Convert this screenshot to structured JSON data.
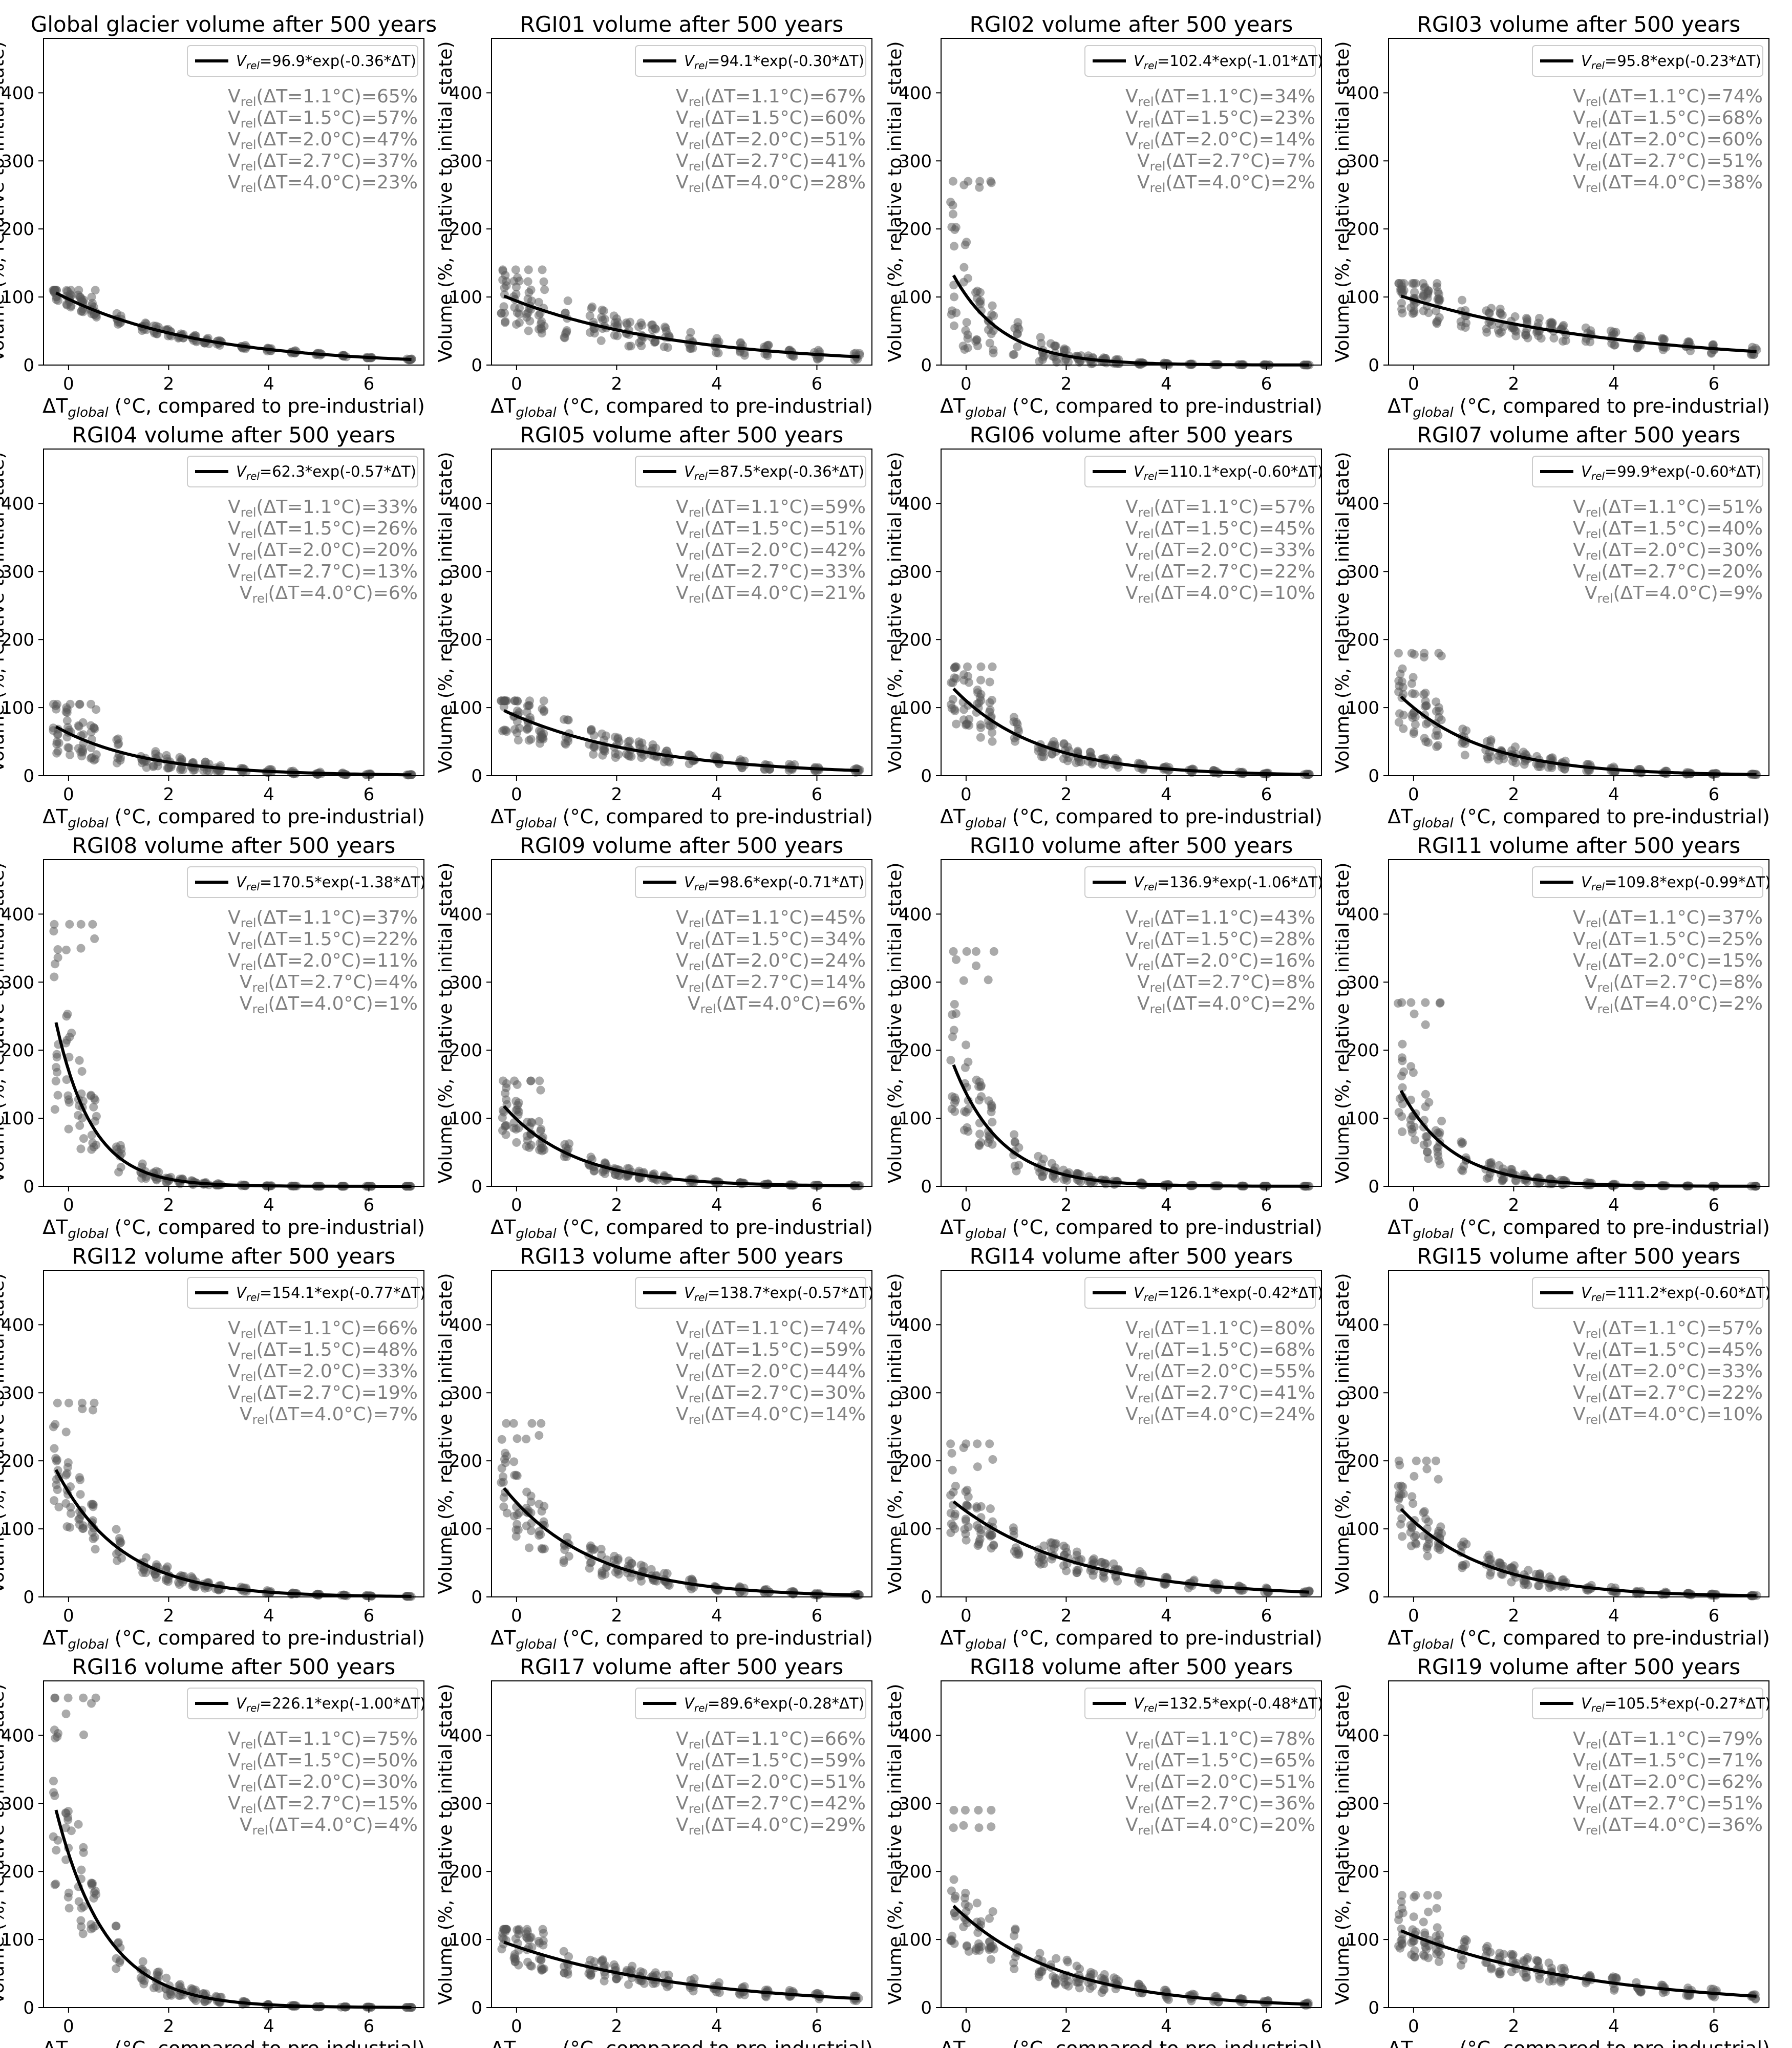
{
  "figure": {
    "xlabel_main": "ΔT",
    "xlabel_sub": "global",
    "xlabel_rest": " (°C, compared to pre-industrial)",
    "ylabel": "Volume (%, relative to initial state)",
    "fit_line_color": "#000000",
    "scatter_color": "#555555",
    "annotation_color": "#808080"
  },
  "chart_data": [
    {
      "type": "scatter",
      "title": "Global glacier volume after 500 years",
      "region": "Global",
      "amplitude": 96.9,
      "rate": 0.36,
      "legend": "=96.9*exp(-0.36*ΔT)",
      "stats": [
        "65%",
        "57%",
        "47%",
        "37%",
        "23%"
      ],
      "max_scatter": 110,
      "spread": 0.12,
      "xlim": [
        -0.5,
        7.1
      ],
      "ylim": [
        0,
        480
      ],
      "xticks": [
        0,
        2,
        4,
        6
      ],
      "yticks": [
        0,
        100,
        200,
        300,
        400
      ]
    },
    {
      "type": "scatter",
      "title": "RGI01 volume after 500 years",
      "region": "RGI01",
      "amplitude": 94.1,
      "rate": 0.3,
      "legend": "=94.1*exp(-0.30*ΔT)",
      "stats": [
        "67%",
        "60%",
        "51%",
        "41%",
        "28%"
      ],
      "max_scatter": 140,
      "spread": 0.45,
      "xlim": [
        -0.5,
        7.1
      ],
      "ylim": [
        0,
        480
      ],
      "xticks": [
        0,
        2,
        4,
        6
      ],
      "yticks": [
        0,
        100,
        200,
        300,
        400
      ]
    },
    {
      "type": "scatter",
      "title": "RGI02 volume after 500 years",
      "region": "RGI02",
      "amplitude": 102.4,
      "rate": 1.01,
      "legend": "=102.4*exp(-1.01*ΔT)",
      "stats": [
        "34%",
        "23%",
        "14%",
        "7%",
        "2%"
      ],
      "max_scatter": 270,
      "spread": 0.8,
      "xlim": [
        -0.5,
        7.1
      ],
      "ylim": [
        0,
        480
      ],
      "xticks": [
        0,
        2,
        4,
        6
      ],
      "yticks": [
        0,
        100,
        200,
        300,
        400
      ]
    },
    {
      "type": "scatter",
      "title": "RGI03 volume after 500 years",
      "region": "RGI03",
      "amplitude": 95.8,
      "rate": 0.23,
      "legend": "=95.8*exp(-0.23*ΔT)",
      "stats": [
        "74%",
        "68%",
        "60%",
        "51%",
        "38%"
      ],
      "max_scatter": 120,
      "spread": 0.3,
      "xlim": [
        -0.5,
        7.1
      ],
      "ylim": [
        0,
        480
      ],
      "xticks": [
        0,
        2,
        4,
        6
      ],
      "yticks": [
        0,
        100,
        200,
        300,
        400
      ]
    },
    {
      "type": "scatter",
      "title": "RGI04 volume after 500 years",
      "region": "RGI04",
      "amplitude": 62.3,
      "rate": 0.57,
      "legend": "=62.3*exp(-0.57*ΔT)",
      "stats": [
        "33%",
        "26%",
        "20%",
        "13%",
        "6%"
      ],
      "max_scatter": 105,
      "spread": 0.55,
      "xlim": [
        -0.5,
        7.1
      ],
      "ylim": [
        0,
        480
      ],
      "xticks": [
        0,
        2,
        4,
        6
      ],
      "yticks": [
        0,
        100,
        200,
        300,
        400
      ]
    },
    {
      "type": "scatter",
      "title": "RGI05 volume after 500 years",
      "region": "RGI05",
      "amplitude": 87.5,
      "rate": 0.36,
      "legend": "=87.5*exp(-0.36*ΔT)",
      "stats": [
        "59%",
        "51%",
        "42%",
        "33%",
        "21%"
      ],
      "max_scatter": 110,
      "spread": 0.4,
      "xlim": [
        -0.5,
        7.1
      ],
      "ylim": [
        0,
        480
      ],
      "xticks": [
        0,
        2,
        4,
        6
      ],
      "yticks": [
        0,
        100,
        200,
        300,
        400
      ]
    },
    {
      "type": "scatter",
      "title": "RGI06 volume after 500 years",
      "region": "RGI06",
      "amplitude": 110.1,
      "rate": 0.6,
      "legend": "=110.1*exp(-0.60*ΔT)",
      "stats": [
        "57%",
        "45%",
        "33%",
        "22%",
        "10%"
      ],
      "max_scatter": 160,
      "spread": 0.4,
      "xlim": [
        -0.5,
        7.1
      ],
      "ylim": [
        0,
        480
      ],
      "xticks": [
        0,
        2,
        4,
        6
      ],
      "yticks": [
        0,
        100,
        200,
        300,
        400
      ]
    },
    {
      "type": "scatter",
      "title": "RGI07 volume after 500 years",
      "region": "RGI07",
      "amplitude": 99.9,
      "rate": 0.6,
      "legend": "=99.9*exp(-0.60*ΔT)",
      "stats": [
        "51%",
        "40%",
        "30%",
        "20%",
        "9%"
      ],
      "max_scatter": 180,
      "spread": 0.45,
      "xlim": [
        -0.5,
        7.1
      ],
      "ylim": [
        0,
        480
      ],
      "xticks": [
        0,
        2,
        4,
        6
      ],
      "yticks": [
        0,
        100,
        200,
        300,
        400
      ]
    },
    {
      "type": "scatter",
      "title": "RGI08 volume after 500 years",
      "region": "RGI08",
      "amplitude": 170.5,
      "rate": 1.38,
      "legend": "=170.5*exp(-1.38*ΔT)",
      "stats": [
        "37%",
        "22%",
        "11%",
        "4%",
        "1%"
      ],
      "max_scatter": 385,
      "spread": 0.55,
      "xlim": [
        -0.5,
        7.1
      ],
      "ylim": [
        0,
        480
      ],
      "xticks": [
        0,
        2,
        4,
        6
      ],
      "yticks": [
        0,
        100,
        200,
        300,
        400
      ]
    },
    {
      "type": "scatter",
      "title": "RGI09 volume after 500 years",
      "region": "RGI09",
      "amplitude": 98.6,
      "rate": 0.71,
      "legend": "=98.6*exp(-0.71*ΔT)",
      "stats": [
        "45%",
        "34%",
        "24%",
        "14%",
        "6%"
      ],
      "max_scatter": 155,
      "spread": 0.35,
      "xlim": [
        -0.5,
        7.1
      ],
      "ylim": [
        0,
        480
      ],
      "xticks": [
        0,
        2,
        4,
        6
      ],
      "yticks": [
        0,
        100,
        200,
        300,
        400
      ]
    },
    {
      "type": "scatter",
      "title": "RGI10 volume after 500 years",
      "region": "RGI10",
      "amplitude": 136.9,
      "rate": 1.06,
      "legend": "=136.9*exp(-1.06*ΔT)",
      "stats": [
        "43%",
        "28%",
        "16%",
        "8%",
        "2%"
      ],
      "max_scatter": 345,
      "spread": 0.55,
      "xlim": [
        -0.5,
        7.1
      ],
      "ylim": [
        0,
        480
      ],
      "xticks": [
        0,
        2,
        4,
        6
      ],
      "yticks": [
        0,
        100,
        200,
        300,
        400
      ]
    },
    {
      "type": "scatter",
      "title": "RGI11 volume after 500 years",
      "region": "RGI11",
      "amplitude": 109.8,
      "rate": 0.99,
      "legend": "=109.8*exp(-0.99*ΔT)",
      "stats": [
        "37%",
        "25%",
        "15%",
        "8%",
        "2%"
      ],
      "max_scatter": 270,
      "spread": 0.6,
      "xlim": [
        -0.5,
        7.1
      ],
      "ylim": [
        0,
        480
      ],
      "xticks": [
        0,
        2,
        4,
        6
      ],
      "yticks": [
        0,
        100,
        200,
        300,
        400
      ]
    },
    {
      "type": "scatter",
      "title": "RGI12 volume after 500 years",
      "region": "RGI12",
      "amplitude": 154.1,
      "rate": 0.77,
      "legend": "=154.1*exp(-0.77*ΔT)",
      "stats": [
        "66%",
        "48%",
        "33%",
        "19%",
        "7%"
      ],
      "max_scatter": 285,
      "spread": 0.35,
      "xlim": [
        -0.5,
        7.1
      ],
      "ylim": [
        0,
        480
      ],
      "xticks": [
        0,
        2,
        4,
        6
      ],
      "yticks": [
        0,
        100,
        200,
        300,
        400
      ]
    },
    {
      "type": "scatter",
      "title": "RGI13 volume after 500 years",
      "region": "RGI13",
      "amplitude": 138.7,
      "rate": 0.57,
      "legend": "=138.7*exp(-0.57*ΔT)",
      "stats": [
        "74%",
        "59%",
        "44%",
        "30%",
        "14%"
      ],
      "max_scatter": 255,
      "spread": 0.4,
      "xlim": [
        -0.5,
        7.1
      ],
      "ylim": [
        0,
        480
      ],
      "xticks": [
        0,
        2,
        4,
        6
      ],
      "yticks": [
        0,
        100,
        200,
        300,
        400
      ]
    },
    {
      "type": "scatter",
      "title": "RGI14 volume after 500 years",
      "region": "RGI14",
      "amplitude": 126.1,
      "rate": 0.42,
      "legend": "=126.1*exp(-0.42*ΔT)",
      "stats": [
        "80%",
        "68%",
        "55%",
        "41%",
        "24%"
      ],
      "max_scatter": 225,
      "spread": 0.35,
      "xlim": [
        -0.5,
        7.1
      ],
      "ylim": [
        0,
        480
      ],
      "xticks": [
        0,
        2,
        4,
        6
      ],
      "yticks": [
        0,
        100,
        200,
        300,
        400
      ]
    },
    {
      "type": "scatter",
      "title": "RGI15 volume after 500 years",
      "region": "RGI15",
      "amplitude": 111.2,
      "rate": 0.6,
      "legend": "=111.2*exp(-0.60*ΔT)",
      "stats": [
        "57%",
        "45%",
        "33%",
        "22%",
        "10%"
      ],
      "max_scatter": 200,
      "spread": 0.4,
      "xlim": [
        -0.5,
        7.1
      ],
      "ylim": [
        0,
        480
      ],
      "xticks": [
        0,
        2,
        4,
        6
      ],
      "yticks": [
        0,
        100,
        200,
        300,
        400
      ]
    },
    {
      "type": "scatter",
      "title": "RGI16 volume after 500 years",
      "region": "RGI16",
      "amplitude": 226.1,
      "rate": 1.0,
      "legend": "=226.1*exp(-1.00*ΔT)",
      "stats": [
        "75%",
        "50%",
        "30%",
        "15%",
        "4%"
      ],
      "max_scatter": 455,
      "spread": 0.45,
      "xlim": [
        -0.5,
        7.1
      ],
      "ylim": [
        0,
        480
      ],
      "xticks": [
        0,
        2,
        4,
        6
      ],
      "yticks": [
        0,
        100,
        200,
        300,
        400
      ]
    },
    {
      "type": "scatter",
      "title": "RGI17 volume after 500 years",
      "region": "RGI17",
      "amplitude": 89.6,
      "rate": 0.28,
      "legend": "=89.6*exp(-0.28*ΔT)",
      "stats": [
        "66%",
        "59%",
        "51%",
        "42%",
        "29%"
      ],
      "max_scatter": 115,
      "spread": 0.3,
      "xlim": [
        -0.5,
        7.1
      ],
      "ylim": [
        0,
        480
      ],
      "xticks": [
        0,
        2,
        4,
        6
      ],
      "yticks": [
        0,
        100,
        200,
        300,
        400
      ]
    },
    {
      "type": "scatter",
      "title": "RGI18 volume after 500 years",
      "region": "RGI18",
      "amplitude": 132.5,
      "rate": 0.48,
      "legend": "=132.5*exp(-0.48*ΔT)",
      "stats": [
        "78%",
        "65%",
        "51%",
        "36%",
        "20%"
      ],
      "max_scatter": 290,
      "spread": 0.4,
      "xlim": [
        -0.5,
        7.1
      ],
      "ylim": [
        0,
        480
      ],
      "xticks": [
        0,
        2,
        4,
        6
      ],
      "yticks": [
        0,
        100,
        200,
        300,
        400
      ]
    },
    {
      "type": "scatter",
      "title": "RGI19 volume after 500 years",
      "region": "RGI19",
      "amplitude": 105.5,
      "rate": 0.27,
      "legend": "=105.5*exp(-0.27*ΔT)",
      "stats": [
        "79%",
        "71%",
        "62%",
        "51%",
        "36%"
      ],
      "max_scatter": 165,
      "spread": 0.3,
      "xlim": [
        -0.5,
        7.1
      ],
      "ylim": [
        0,
        480
      ],
      "xticks": [
        0,
        2,
        4,
        6
      ],
      "yticks": [
        0,
        100,
        200,
        300,
        400
      ]
    }
  ],
  "stat_labels": {
    "prefix": "V",
    "sub": "rel",
    "temps": [
      "(ΔT=1.1°C)=",
      "(ΔT=1.5°C)=",
      "(ΔT=2.0°C)=",
      "(ΔT=2.7°C)=",
      "(ΔT=4.0°C)="
    ]
  },
  "legend_label": {
    "prefix": "V",
    "sub": "rel"
  }
}
